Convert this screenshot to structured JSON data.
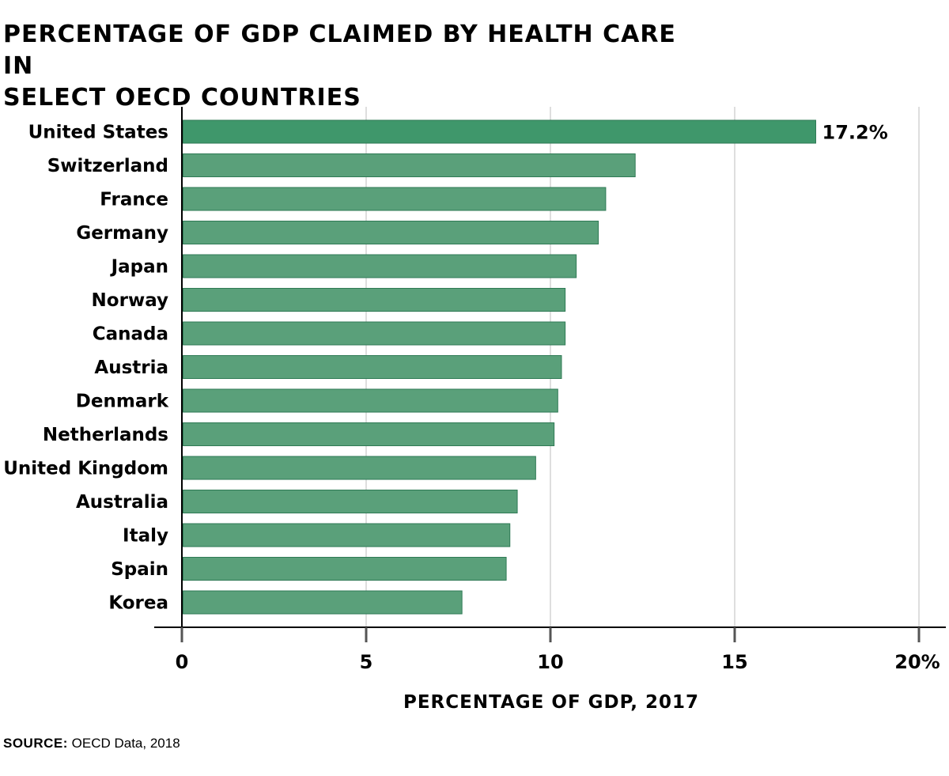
{
  "chart_data": {
    "type": "bar",
    "orientation": "horizontal",
    "title_lines": [
      "PERCENTAGE OF GDP CLAIMED BY HEALTH CARE IN",
      "SELECT OECD COUNTRIES"
    ],
    "xlabel": "PERCENTAGE OF GDP, 2017",
    "ylabel": "",
    "xlim": [
      0,
      20
    ],
    "x_ticks": [
      "0",
      "5",
      "10",
      "15",
      "20%"
    ],
    "x_tick_values": [
      0,
      5,
      10,
      15,
      20
    ],
    "grid": true,
    "categories": [
      "United States",
      "Switzerland",
      "France",
      "Germany",
      "Japan",
      "Norway",
      "Canada",
      "Austria",
      "Denmark",
      "Netherlands",
      "United Kingdom",
      "Australia",
      "Italy",
      "Spain",
      "Korea"
    ],
    "values": [
      17.2,
      12.3,
      11.5,
      11.3,
      10.7,
      10.4,
      10.4,
      10.3,
      10.2,
      10.1,
      9.6,
      9.1,
      8.9,
      8.8,
      7.6
    ],
    "data_labels": [
      {
        "category": "United States",
        "text": "17.2%"
      }
    ],
    "colors": {
      "highlight": "#3f976b",
      "bar": "#5aa07a",
      "bar_stroke": "#2f7a55",
      "grid": "#c8c8c8",
      "axis": "#000000"
    }
  },
  "source": {
    "label": "SOURCE:",
    "text": "OECD Data, 2018"
  }
}
